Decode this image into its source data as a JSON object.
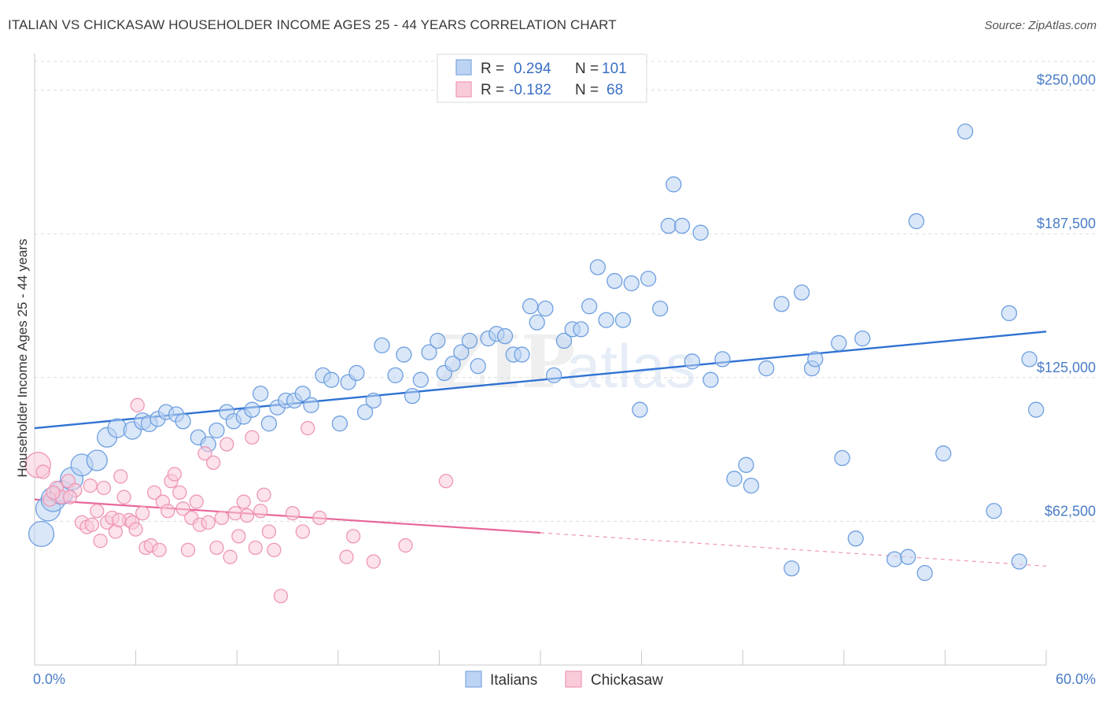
{
  "header": {
    "title": "ITALIAN VS CHICKASAW HOUSEHOLDER INCOME AGES 25 - 44 YEARS CORRELATION CHART",
    "source": "Source: ZipAtlas.com"
  },
  "watermark": {
    "part1": "ZIP",
    "part2": "atlas"
  },
  "legend": {
    "rows": [
      {
        "r_label": "R =",
        "r_value": "0.294",
        "n_label": "N =",
        "n_value": "101"
      },
      {
        "r_label": "R =",
        "r_value": "-0.182",
        "n_label": "N =",
        "n_value": "68"
      }
    ]
  },
  "chart_data": {
    "type": "scatter",
    "title": "ITALIAN VS CHICKASAW HOUSEHOLDER INCOME AGES 25 - 44 YEARS CORRELATION CHART",
    "xlabel": "",
    "ylabel": "Householder Income Ages 25 - 44 years",
    "xlim": [
      0,
      60
    ],
    "ylim": [
      0,
      262500
    ],
    "x_tick_labels": [
      "0.0%",
      "60.0%"
    ],
    "y_ticks": [
      62500,
      125000,
      187500,
      250000
    ],
    "y_tick_labels": [
      "$62,500",
      "$125,000",
      "$187,500",
      "$250,000"
    ],
    "grid": "horizontal dashed",
    "legend_position": "top-center",
    "colors": {
      "italians": "#6e9fe0",
      "italians_line": "#2f72d3",
      "chickasaw": "#f08db0",
      "chickasaw_line": "#e8679a"
    },
    "series": [
      {
        "name": "Italians",
        "r": 0.294,
        "n": 101,
        "trend": {
          "x0": 0,
          "y0": 103000,
          "x1": 60,
          "y1": 145000
        },
        "points": [
          [
            0.4,
            57000
          ],
          [
            0.8,
            68000
          ],
          [
            1.1,
            72000
          ],
          [
            1.6,
            75000
          ],
          [
            2.2,
            81000
          ],
          [
            2.8,
            87000
          ],
          [
            3.7,
            89000
          ],
          [
            4.3,
            99000
          ],
          [
            4.9,
            103000
          ],
          [
            5.8,
            102000
          ],
          [
            6.4,
            106000
          ],
          [
            6.8,
            105000
          ],
          [
            7.3,
            107000
          ],
          [
            7.8,
            110000
          ],
          [
            8.4,
            109000
          ],
          [
            8.8,
            106000
          ],
          [
            9.7,
            99000
          ],
          [
            10.3,
            96000
          ],
          [
            10.8,
            102000
          ],
          [
            11.4,
            110000
          ],
          [
            11.8,
            106000
          ],
          [
            12.4,
            108000
          ],
          [
            12.9,
            111000
          ],
          [
            13.4,
            118000
          ],
          [
            13.9,
            105000
          ],
          [
            14.4,
            112000
          ],
          [
            14.9,
            115000
          ],
          [
            15.4,
            115000
          ],
          [
            15.9,
            118000
          ],
          [
            16.4,
            113000
          ],
          [
            17.1,
            126000
          ],
          [
            17.6,
            124000
          ],
          [
            18.1,
            105000
          ],
          [
            18.6,
            123000
          ],
          [
            19.1,
            127000
          ],
          [
            19.6,
            110000
          ],
          [
            20.1,
            115000
          ],
          [
            20.6,
            139000
          ],
          [
            21.4,
            126000
          ],
          [
            21.9,
            135000
          ],
          [
            22.4,
            117000
          ],
          [
            22.9,
            124000
          ],
          [
            23.4,
            136000
          ],
          [
            23.9,
            141000
          ],
          [
            24.3,
            127000
          ],
          [
            24.8,
            131000
          ],
          [
            25.3,
            136000
          ],
          [
            25.8,
            141000
          ],
          [
            26.3,
            130000
          ],
          [
            26.9,
            142000
          ],
          [
            27.4,
            144000
          ],
          [
            27.9,
            143000
          ],
          [
            28.4,
            135000
          ],
          [
            28.9,
            135000
          ],
          [
            29.4,
            156000
          ],
          [
            29.8,
            149000
          ],
          [
            30.3,
            155000
          ],
          [
            30.8,
            126000
          ],
          [
            31.4,
            141000
          ],
          [
            31.9,
            146000
          ],
          [
            32.4,
            146000
          ],
          [
            32.9,
            156000
          ],
          [
            33.4,
            173000
          ],
          [
            33.9,
            150000
          ],
          [
            34.4,
            167000
          ],
          [
            34.9,
            150000
          ],
          [
            35.4,
            166000
          ],
          [
            35.9,
            111000
          ],
          [
            36.4,
            168000
          ],
          [
            37.1,
            155000
          ],
          [
            37.6,
            191000
          ],
          [
            37.9,
            209000
          ],
          [
            38.4,
            191000
          ],
          [
            39.0,
            132000
          ],
          [
            39.5,
            188000
          ],
          [
            40.1,
            124000
          ],
          [
            40.8,
            133000
          ],
          [
            41.5,
            81000
          ],
          [
            42.2,
            87000
          ],
          [
            42.5,
            78000
          ],
          [
            43.4,
            129000
          ],
          [
            44.3,
            157000
          ],
          [
            44.9,
            42000
          ],
          [
            45.5,
            162000
          ],
          [
            46.1,
            129000
          ],
          [
            46.3,
            133000
          ],
          [
            47.7,
            140000
          ],
          [
            47.9,
            90000
          ],
          [
            48.7,
            55000
          ],
          [
            49.1,
            142000
          ],
          [
            51.0,
            46000
          ],
          [
            51.8,
            47000
          ],
          [
            52.3,
            193000
          ],
          [
            52.8,
            40000
          ],
          [
            53.9,
            92000
          ],
          [
            55.2,
            232000
          ],
          [
            56.9,
            67000
          ],
          [
            57.8,
            153000
          ],
          [
            59.0,
            133000
          ],
          [
            59.4,
            111000
          ],
          [
            58.4,
            45000
          ]
        ]
      },
      {
        "name": "Chickasaw",
        "r": -0.182,
        "n": 68,
        "trend": {
          "x0": 0,
          "y0": 72000,
          "x1": 60,
          "y1": 43000,
          "solid_until_x": 30
        },
        "points": [
          [
            0.2,
            87000
          ],
          [
            0.5,
            84000
          ],
          [
            0.9,
            72000
          ],
          [
            1.3,
            77000
          ],
          [
            1.6,
            73000
          ],
          [
            2.0,
            80000
          ],
          [
            2.4,
            76000
          ],
          [
            2.8,
            62000
          ],
          [
            3.1,
            60000
          ],
          [
            3.4,
            61000
          ],
          [
            3.7,
            67000
          ],
          [
            3.9,
            54000
          ],
          [
            4.1,
            77000
          ],
          [
            4.3,
            62000
          ],
          [
            4.6,
            64000
          ],
          [
            4.8,
            58000
          ],
          [
            5.1,
            82000
          ],
          [
            5.3,
            73000
          ],
          [
            5.6,
            63000
          ],
          [
            5.8,
            62000
          ],
          [
            6.1,
            113000
          ],
          [
            6.4,
            66000
          ],
          [
            6.6,
            51000
          ],
          [
            6.9,
            52000
          ],
          [
            7.1,
            75000
          ],
          [
            7.4,
            50000
          ],
          [
            7.6,
            71000
          ],
          [
            7.9,
            67000
          ],
          [
            8.1,
            80000
          ],
          [
            8.3,
            83000
          ],
          [
            8.6,
            75000
          ],
          [
            8.8,
            68000
          ],
          [
            9.1,
            50000
          ],
          [
            9.3,
            64000
          ],
          [
            9.6,
            71000
          ],
          [
            9.8,
            61000
          ],
          [
            10.1,
            92000
          ],
          [
            10.3,
            62000
          ],
          [
            10.6,
            88000
          ],
          [
            10.8,
            51000
          ],
          [
            11.1,
            64000
          ],
          [
            11.4,
            96000
          ],
          [
            11.6,
            47000
          ],
          [
            11.9,
            66000
          ],
          [
            12.1,
            56000
          ],
          [
            12.4,
            71000
          ],
          [
            12.6,
            65000
          ],
          [
            12.9,
            99000
          ],
          [
            13.1,
            51000
          ],
          [
            13.4,
            67000
          ],
          [
            13.6,
            74000
          ],
          [
            13.9,
            58000
          ],
          [
            14.2,
            50000
          ],
          [
            14.6,
            30000
          ],
          [
            15.3,
            66000
          ],
          [
            15.9,
            58000
          ],
          [
            16.2,
            103000
          ],
          [
            16.9,
            64000
          ],
          [
            18.5,
            47000
          ],
          [
            18.9,
            56000
          ],
          [
            20.1,
            45000
          ],
          [
            22.0,
            52000
          ],
          [
            24.4,
            80000
          ],
          [
            1.1,
            75000
          ],
          [
            2.1,
            73000
          ],
          [
            3.3,
            78000
          ],
          [
            5.0,
            63000
          ],
          [
            6.0,
            59000
          ]
        ]
      }
    ]
  },
  "bottom_legend": {
    "items": [
      {
        "label": "Italians"
      },
      {
        "label": "Chickasaw"
      }
    ]
  }
}
